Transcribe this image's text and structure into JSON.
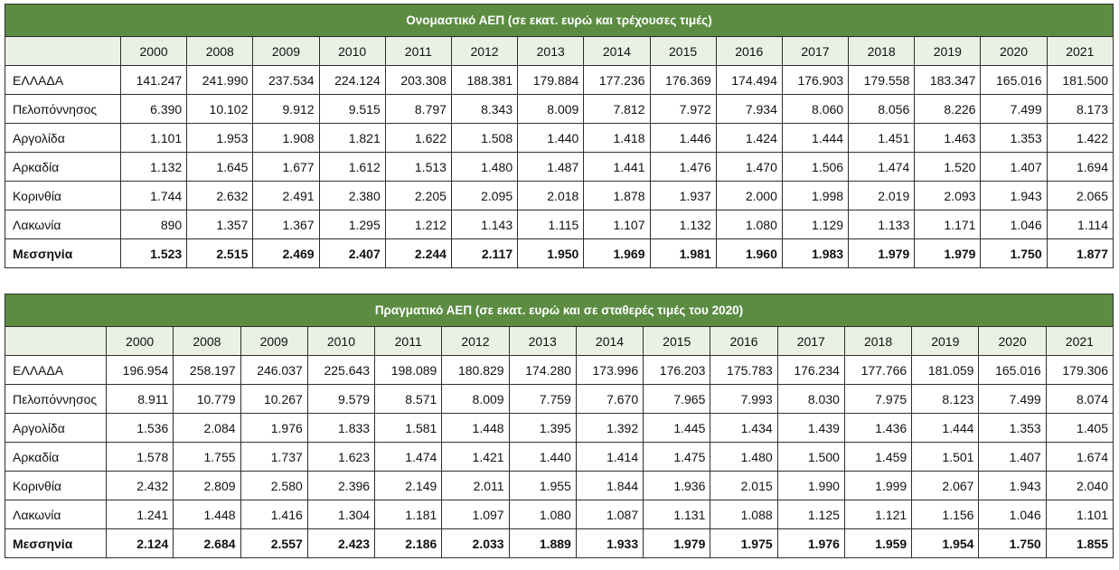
{
  "tables": [
    {
      "title": "Ονομαστικό ΑΕΠ (σε εκατ. ευρώ και τρέχουσες τιμές)",
      "years": [
        "2000",
        "2008",
        "2009",
        "2010",
        "2011",
        "2012",
        "2013",
        "2014",
        "2015",
        "2016",
        "2017",
        "2018",
        "2019",
        "2020",
        "2021"
      ],
      "rows": [
        {
          "label": "ΕΛΛΑΔΑ",
          "values": [
            "141.247",
            "241.990",
            "237.534",
            "224.124",
            "203.308",
            "188.381",
            "179.884",
            "177.236",
            "176.369",
            "174.494",
            "176.903",
            "179.558",
            "183.347",
            "165.016",
            "181.500"
          ]
        },
        {
          "label": "Πελοπόννησος",
          "values": [
            "6.390",
            "10.102",
            "9.912",
            "9.515",
            "8.797",
            "8.343",
            "8.009",
            "7.812",
            "7.972",
            "7.934",
            "8.060",
            "8.056",
            "8.226",
            "7.499",
            "8.173"
          ]
        },
        {
          "label": "Αργολίδα",
          "values": [
            "1.101",
            "1.953",
            "1.908",
            "1.821",
            "1.622",
            "1.508",
            "1.440",
            "1.418",
            "1.446",
            "1.424",
            "1.444",
            "1.451",
            "1.463",
            "1.353",
            "1.422"
          ]
        },
        {
          "label": "Αρκαδία",
          "values": [
            "1.132",
            "1.645",
            "1.677",
            "1.612",
            "1.513",
            "1.480",
            "1.487",
            "1.441",
            "1.476",
            "1.470",
            "1.506",
            "1.474",
            "1.520",
            "1.407",
            "1.694"
          ]
        },
        {
          "label": "Κορινθία",
          "values": [
            "1.744",
            "2.632",
            "2.491",
            "2.380",
            "2.205",
            "2.095",
            "2.018",
            "1.878",
            "1.937",
            "2.000",
            "1.998",
            "2.019",
            "2.093",
            "1.943",
            "2.065"
          ]
        },
        {
          "label": "Λακωνία",
          "values": [
            "890",
            "1.357",
            "1.367",
            "1.295",
            "1.212",
            "1.143",
            "1.115",
            "1.107",
            "1.132",
            "1.080",
            "1.129",
            "1.133",
            "1.171",
            "1.046",
            "1.114"
          ]
        },
        {
          "label": "Μεσσηνία",
          "values": [
            "1.523",
            "2.515",
            "2.469",
            "2.407",
            "2.244",
            "2.117",
            "1.950",
            "1.969",
            "1.981",
            "1.960",
            "1.983",
            "1.979",
            "1.979",
            "1.750",
            "1.877"
          ],
          "bold": true
        }
      ]
    },
    {
      "title": "Πραγματικό ΑΕΠ (σε εκατ. ευρώ και σε σταθερές τιμές του 2020)",
      "years": [
        "2000",
        "2008",
        "2009",
        "2010",
        "2011",
        "2012",
        "2013",
        "2014",
        "2015",
        "2016",
        "2017",
        "2018",
        "2019",
        "2020",
        "2021"
      ],
      "rows": [
        {
          "label": "ΕΛΛΑΔΑ",
          "values": [
            "196.954",
            "258.197",
            "246.037",
            "225.643",
            "198.089",
            "180.829",
            "174.280",
            "173.996",
            "176.203",
            "175.783",
            "176.234",
            "177.766",
            "181.059",
            "165.016",
            "179.306"
          ]
        },
        {
          "label": "Πελοπόννησος",
          "values": [
            "8.911",
            "10.779",
            "10.267",
            "9.579",
            "8.571",
            "8.009",
            "7.759",
            "7.670",
            "7.965",
            "7.993",
            "8.030",
            "7.975",
            "8.123",
            "7.499",
            "8.074"
          ]
        },
        {
          "label": "Αργολίδα",
          "values": [
            "1.536",
            "2.084",
            "1.976",
            "1.833",
            "1.581",
            "1.448",
            "1.395",
            "1.392",
            "1.445",
            "1.434",
            "1.439",
            "1.436",
            "1.444",
            "1.353",
            "1.405"
          ]
        },
        {
          "label": "Αρκαδία",
          "values": [
            "1.578",
            "1.755",
            "1.737",
            "1.623",
            "1.474",
            "1.421",
            "1.440",
            "1.414",
            "1.475",
            "1.480",
            "1.500",
            "1.459",
            "1.501",
            "1.407",
            "1.674"
          ]
        },
        {
          "label": "Κορινθία",
          "values": [
            "2.432",
            "2.809",
            "2.580",
            "2.396",
            "2.149",
            "2.011",
            "1.955",
            "1.844",
            "1.936",
            "2.015",
            "1.990",
            "1.999",
            "2.067",
            "1.943",
            "2.040"
          ]
        },
        {
          "label": "Λακωνία",
          "values": [
            "1.241",
            "1.448",
            "1.416",
            "1.304",
            "1.181",
            "1.097",
            "1.080",
            "1.087",
            "1.131",
            "1.088",
            "1.125",
            "1.121",
            "1.156",
            "1.046",
            "1.101"
          ]
        },
        {
          "label": "Μεσσηνία",
          "values": [
            "2.124",
            "2.684",
            "2.557",
            "2.423",
            "2.186",
            "2.033",
            "1.889",
            "1.933",
            "1.979",
            "1.975",
            "1.976",
            "1.959",
            "1.954",
            "1.750",
            "1.855"
          ],
          "bold": true
        }
      ]
    }
  ],
  "colors": {
    "header_bg": "#5b8c42",
    "header_text": "#ffffff",
    "year_row_bg": "#eaf1e4",
    "border": "#2e2e2e"
  }
}
